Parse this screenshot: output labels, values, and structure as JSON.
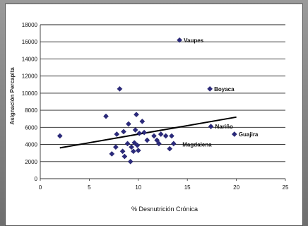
{
  "chart_data": {
    "type": "scatter",
    "xlabel": "% Desnutrición Crónica",
    "ylabel": "Asignación Percapita",
    "xlim": [
      0,
      25
    ],
    "ylim": [
      0,
      18000
    ],
    "x_ticks": [
      0,
      5,
      10,
      15,
      20,
      25
    ],
    "y_ticks": [
      0,
      2000,
      4000,
      6000,
      8000,
      10000,
      12000,
      14000,
      16000,
      18000
    ],
    "grid": "horizontal",
    "legend": "none",
    "point_color": "#2b2a7c",
    "trendline": {
      "x": [
        2,
        20
      ],
      "y": [
        3600,
        7200
      ],
      "color": "#000000"
    },
    "points": [
      {
        "x": 2,
        "y": 5000
      },
      {
        "x": 6.7,
        "y": 7300
      },
      {
        "x": 7.3,
        "y": 2900
      },
      {
        "x": 7.7,
        "y": 3700
      },
      {
        "x": 7.8,
        "y": 5200
      },
      {
        "x": 8.1,
        "y": 10500
      },
      {
        "x": 8.4,
        "y": 3200
      },
      {
        "x": 8.5,
        "y": 5500
      },
      {
        "x": 8.6,
        "y": 2600
      },
      {
        "x": 8.9,
        "y": 4100
      },
      {
        "x": 9.0,
        "y": 6400
      },
      {
        "x": 9.2,
        "y": 2000
      },
      {
        "x": 9.3,
        "y": 3700
      },
      {
        "x": 9.5,
        "y": 3200
      },
      {
        "x": 9.6,
        "y": 4200
      },
      {
        "x": 9.7,
        "y": 5700
      },
      {
        "x": 9.8,
        "y": 7500
      },
      {
        "x": 9.9,
        "y": 3900
      },
      {
        "x": 10.0,
        "y": 3300
      },
      {
        "x": 10.1,
        "y": 5300
      },
      {
        "x": 10.4,
        "y": 6700
      },
      {
        "x": 10.6,
        "y": 5400
      },
      {
        "x": 10.9,
        "y": 4500
      },
      {
        "x": 11.6,
        "y": 5000
      },
      {
        "x": 11.9,
        "y": 4500
      },
      {
        "x": 12.1,
        "y": 4100
      },
      {
        "x": 12.3,
        "y": 5200
      },
      {
        "x": 12.8,
        "y": 5000
      },
      {
        "x": 13.2,
        "y": 3500
      },
      {
        "x": 13.4,
        "y": 5000
      },
      {
        "x": 13.6,
        "y": 4100
      },
      {
        "x": 14.2,
        "y": 16200,
        "label": "Vaupes"
      },
      {
        "x": 17.3,
        "y": 10500,
        "label": "Boyaca"
      },
      {
        "x": 17.4,
        "y": 6100,
        "label": "Nariño"
      },
      {
        "x": 19.8,
        "y": 5200,
        "label": "Guajira"
      }
    ],
    "annotations": [
      {
        "text": "Magdalena",
        "x": 14.5,
        "y": 4000
      }
    ]
  }
}
